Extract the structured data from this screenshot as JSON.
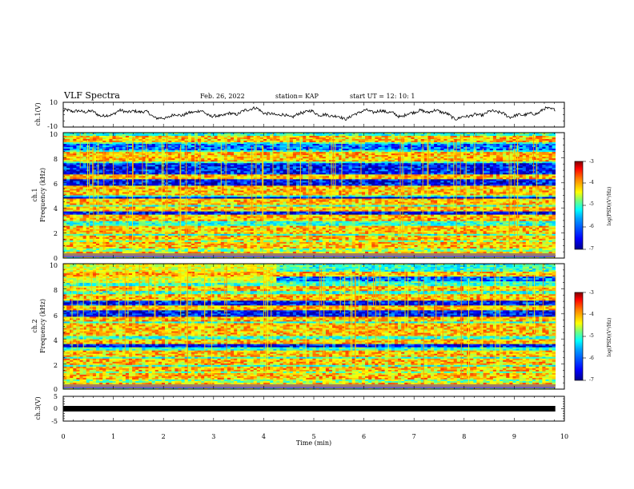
{
  "header": {
    "title": "VLF Spectra",
    "date": "Feb. 26, 2022",
    "station": "station= KAP",
    "start": "start  UT =   12: 10: 1"
  },
  "chart_data": [
    {
      "type": "line",
      "ylabel": "ch.1(V)",
      "ylim": [
        -10,
        10
      ],
      "y_ticks": [
        "10",
        "-10"
      ],
      "x_range": [
        0,
        10
      ],
      "note_values": "voltage trace oscillating roughly between -5 and +6 V over 0-9.8 min",
      "line_color": "#000000"
    },
    {
      "type": "heatmap",
      "ylabel_top": "ch.1",
      "ylabel": "Frequency (kHz)",
      "ylim": [
        0,
        10
      ],
      "y_ticks": [
        "0",
        "2",
        "4",
        "6",
        "8",
        "10"
      ],
      "x_range": [
        0,
        9.8
      ],
      "colorbar": {
        "label": "log(PSD)(V²/Hz)",
        "range": [
          -7,
          -3
        ],
        "ticks": [
          "-3",
          "-4",
          "-5",
          "-6",
          "-7"
        ]
      },
      "bands_khz": [
        0.3,
        1.0,
        1.6,
        2.1,
        2.4,
        3.2,
        3.9,
        4.5,
        5.2,
        5.5,
        6.5,
        7.9,
        8.3,
        9.5
      ]
    },
    {
      "type": "heatmap",
      "ylabel_top": "ch.2",
      "ylabel": "Frequency (kHz)",
      "ylim": [
        0,
        10
      ],
      "y_ticks": [
        "0",
        "2",
        "4",
        "6",
        "8",
        "10"
      ],
      "x_range": [
        0,
        9.8
      ],
      "colorbar": {
        "label": "log(PSD)(V²/Hz)",
        "range": [
          -7,
          -3
        ],
        "ticks": [
          "-3",
          "-4",
          "-5",
          "-6",
          "-7"
        ]
      },
      "bands_khz": [
        0.3,
        1.0,
        1.6,
        2.2,
        2.8,
        3.8,
        4.5,
        5.0,
        5.6,
        6.5,
        7.3,
        8.0,
        9.2
      ]
    },
    {
      "type": "line",
      "ylabel": "ch.3(V)",
      "ylim": [
        -5,
        5
      ],
      "y_ticks": [
        "5",
        "0",
        "-5"
      ],
      "x_range": [
        0,
        9.8
      ],
      "value": 0,
      "line_color": "#000000"
    }
  ],
  "xaxis": {
    "label": "Time (min)",
    "ticks": [
      "0",
      "1",
      "2",
      "3",
      "4",
      "5",
      "6",
      "7",
      "8",
      "9",
      "10"
    ],
    "range": [
      0,
      10
    ]
  },
  "colors": {
    "background": "#ffffff",
    "jet": [
      "#00008f",
      "#0000ff",
      "#00a0ff",
      "#00ffff",
      "#70ff80",
      "#ffff00",
      "#ff8000",
      "#ff0000",
      "#800000"
    ]
  }
}
